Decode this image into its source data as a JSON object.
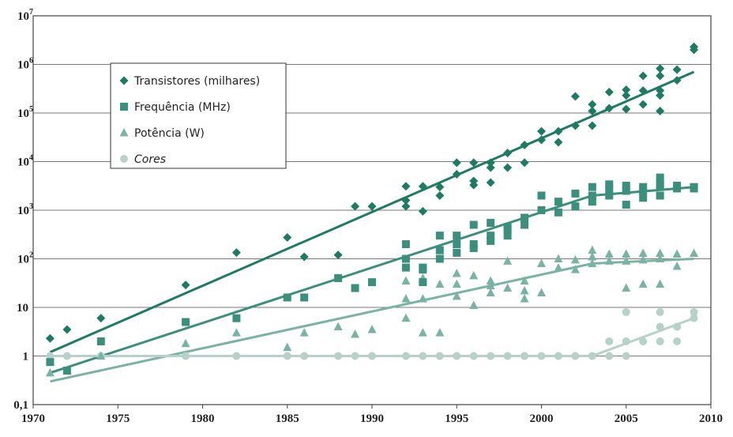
{
  "chart_data": {
    "type": "scatter",
    "title": "",
    "xlabel": "",
    "ylabel": "",
    "xlim": [
      1970,
      2010
    ],
    "ylim": [
      0.1,
      10000000
    ],
    "yscale": "log",
    "grid": "horizontal",
    "legend_position": "top-left",
    "x_ticks": [
      1970,
      1975,
      1980,
      1985,
      1990,
      1995,
      2000,
      2005,
      2010
    ],
    "y_ticks": [
      {
        "value": 0.1,
        "base": "0,1",
        "exp": ""
      },
      {
        "value": 1,
        "base": "1",
        "exp": ""
      },
      {
        "value": 10,
        "base": "10",
        "exp": ""
      },
      {
        "value": 100,
        "base": "10",
        "exp": "2"
      },
      {
        "value": 1000,
        "base": "10",
        "exp": "3"
      },
      {
        "value": 10000,
        "base": "10",
        "exp": "4"
      },
      {
        "value": 100000,
        "base": "10",
        "exp": "5"
      },
      {
        "value": 1000000,
        "base": "10",
        "exp": "6"
      },
      {
        "value": 10000000,
        "base": "10",
        "exp": "7"
      }
    ],
    "series": [
      {
        "name": "Transistores (milhares)",
        "marker": "diamond",
        "color": "#1f7a64",
        "trend": [
          [
            1971,
            1.2
          ],
          [
            2009,
            700000
          ]
        ],
        "points": [
          [
            1971,
            2.3
          ],
          [
            1972,
            3.5
          ],
          [
            1974,
            6
          ],
          [
            1979,
            29
          ],
          [
            1982,
            134
          ],
          [
            1985,
            275
          ],
          [
            1986,
            110
          ],
          [
            1988,
            120
          ],
          [
            1989,
            1200
          ],
          [
            1990,
            1200
          ],
          [
            1992,
            3100
          ],
          [
            1992,
            1200
          ],
          [
            1992,
            1600
          ],
          [
            1993,
            3100
          ],
          [
            1993,
            950
          ],
          [
            1994,
            2000
          ],
          [
            1994,
            3000
          ],
          [
            1995,
            5500
          ],
          [
            1995,
            9500
          ],
          [
            1996,
            4000
          ],
          [
            1996,
            3300
          ],
          [
            1996,
            9500
          ],
          [
            1997,
            7500
          ],
          [
            1997,
            9500
          ],
          [
            1997,
            3700
          ],
          [
            1998,
            7500
          ],
          [
            1998,
            15000
          ],
          [
            1999,
            9500
          ],
          [
            1999,
            22000
          ],
          [
            2000,
            28000
          ],
          [
            2000,
            42000
          ],
          [
            2001,
            42000
          ],
          [
            2001,
            25000
          ],
          [
            2002,
            55000
          ],
          [
            2002,
            220000
          ],
          [
            2003,
            110000
          ],
          [
            2003,
            150000
          ],
          [
            2003,
            55000
          ],
          [
            2004,
            125000
          ],
          [
            2004,
            270000
          ],
          [
            2005,
            230000
          ],
          [
            2005,
            300000
          ],
          [
            2005,
            120000
          ],
          [
            2006,
            150000
          ],
          [
            2006,
            290000
          ],
          [
            2006,
            580000
          ],
          [
            2007,
            290000
          ],
          [
            2007,
            580000
          ],
          [
            2007,
            820000
          ],
          [
            2007,
            110000
          ],
          [
            2007,
            230000
          ],
          [
            2008,
            470000
          ],
          [
            2008,
            780000
          ],
          [
            2009,
            2000000
          ],
          [
            2009,
            2300000
          ]
        ]
      },
      {
        "name": "Frequência (MHz)",
        "marker": "square",
        "color": "#3c8f7c",
        "trend": [
          [
            1971,
            0.45
          ],
          [
            2003,
            2000
          ],
          [
            2009,
            3000
          ]
        ],
        "points": [
          [
            1971,
            0.75
          ],
          [
            1972,
            0.5
          ],
          [
            1974,
            2
          ],
          [
            1979,
            5
          ],
          [
            1982,
            6
          ],
          [
            1985,
            16
          ],
          [
            1986,
            16
          ],
          [
            1988,
            40
          ],
          [
            1989,
            25
          ],
          [
            1990,
            33
          ],
          [
            1992,
            66
          ],
          [
            1992,
            100
          ],
          [
            1992,
            200
          ],
          [
            1993,
            60
          ],
          [
            1993,
            66
          ],
          [
            1993,
            33
          ],
          [
            1994,
            100
          ],
          [
            1994,
            150
          ],
          [
            1994,
            300
          ],
          [
            1995,
            133
          ],
          [
            1995,
            200
          ],
          [
            1995,
            300
          ],
          [
            1996,
            166
          ],
          [
            1996,
            200
          ],
          [
            1996,
            500
          ],
          [
            1997,
            233
          ],
          [
            1997,
            300
          ],
          [
            1997,
            550
          ],
          [
            1998,
            300
          ],
          [
            1998,
            450
          ],
          [
            1998,
            400
          ],
          [
            1999,
            500
          ],
          [
            1999,
            600
          ],
          [
            1999,
            700
          ],
          [
            2000,
            1000
          ],
          [
            2000,
            2000
          ],
          [
            2001,
            900
          ],
          [
            2001,
            1500
          ],
          [
            2002,
            2200
          ],
          [
            2002,
            1200
          ],
          [
            2003,
            2000
          ],
          [
            2003,
            1500
          ],
          [
            2003,
            3000
          ],
          [
            2004,
            2800
          ],
          [
            2004,
            3400
          ],
          [
            2004,
            2000
          ],
          [
            2005,
            2500
          ],
          [
            2005,
            3200
          ],
          [
            2005,
            1300
          ],
          [
            2006,
            2500
          ],
          [
            2006,
            3000
          ],
          [
            2006,
            1800
          ],
          [
            2007,
            2000
          ],
          [
            2007,
            3000
          ],
          [
            2007,
            4700
          ],
          [
            2007,
            3500
          ],
          [
            2008,
            2800
          ],
          [
            2008,
            3200
          ],
          [
            2009,
            3000
          ],
          [
            2009,
            2800
          ]
        ]
      },
      {
        "name": "Potência (W)",
        "marker": "triangle",
        "color": "#7ab3a4",
        "trend": [
          [
            1971,
            0.3
          ],
          [
            2003,
            80
          ],
          [
            2009,
            100
          ]
        ],
        "points": [
          [
            1971,
            0.45
          ],
          [
            1972,
            0.5
          ],
          [
            1974,
            1
          ],
          [
            1979,
            1.8
          ],
          [
            1982,
            3
          ],
          [
            1985,
            1.5
          ],
          [
            1986,
            3
          ],
          [
            1988,
            4
          ],
          [
            1989,
            2.8
          ],
          [
            1990,
            3.5
          ],
          [
            1992,
            6
          ],
          [
            1992,
            15
          ],
          [
            1992,
            35
          ],
          [
            1993,
            3
          ],
          [
            1993,
            40
          ],
          [
            1993,
            15
          ],
          [
            1994,
            3
          ],
          [
            1994,
            30
          ],
          [
            1995,
            17
          ],
          [
            1995,
            50
          ],
          [
            1995,
            30
          ],
          [
            1996,
            11
          ],
          [
            1996,
            45
          ],
          [
            1997,
            28
          ],
          [
            1997,
            20
          ],
          [
            1997,
            35
          ],
          [
            1998,
            90
          ],
          [
            1998,
            25
          ],
          [
            1999,
            15
          ],
          [
            1999,
            22
          ],
          [
            1999,
            35
          ],
          [
            2000,
            20
          ],
          [
            2000,
            80
          ],
          [
            2001,
            100
          ],
          [
            2001,
            65
          ],
          [
            2002,
            95
          ],
          [
            2002,
            60
          ],
          [
            2003,
            110
          ],
          [
            2003,
            150
          ],
          [
            2003,
            80
          ],
          [
            2004,
            125
          ],
          [
            2004,
            90
          ],
          [
            2005,
            125
          ],
          [
            2005,
            25
          ],
          [
            2005,
            90
          ],
          [
            2006,
            130
          ],
          [
            2006,
            95
          ],
          [
            2006,
            30
          ],
          [
            2007,
            130
          ],
          [
            2007,
            100
          ],
          [
            2007,
            30
          ],
          [
            2008,
            125
          ],
          [
            2008,
            70
          ],
          [
            2009,
            130
          ]
        ]
      },
      {
        "name": "Cores",
        "marker": "circle",
        "color": "#b5d1c9",
        "trend": [
          [
            1971,
            1
          ],
          [
            2003,
            1
          ],
          [
            2009,
            6
          ]
        ],
        "points": [
          [
            1971,
            1
          ],
          [
            1972,
            1
          ],
          [
            1974,
            1
          ],
          [
            1979,
            1
          ],
          [
            1982,
            1
          ],
          [
            1985,
            1
          ],
          [
            1986,
            1
          ],
          [
            1988,
            1
          ],
          [
            1989,
            1
          ],
          [
            1990,
            1
          ],
          [
            1992,
            1
          ],
          [
            1993,
            1
          ],
          [
            1994,
            1
          ],
          [
            1995,
            1
          ],
          [
            1996,
            1
          ],
          [
            1997,
            1
          ],
          [
            1998,
            1
          ],
          [
            1999,
            1
          ],
          [
            2000,
            1
          ],
          [
            2001,
            1
          ],
          [
            2002,
            1
          ],
          [
            2003,
            1
          ],
          [
            2004,
            1
          ],
          [
            2004,
            2
          ],
          [
            2005,
            1
          ],
          [
            2005,
            2
          ],
          [
            2005,
            8
          ],
          [
            2006,
            2
          ],
          [
            2007,
            2
          ],
          [
            2007,
            4
          ],
          [
            2007,
            8
          ],
          [
            2008,
            2
          ],
          [
            2008,
            4
          ],
          [
            2009,
            6
          ],
          [
            2009,
            8
          ]
        ]
      }
    ]
  }
}
